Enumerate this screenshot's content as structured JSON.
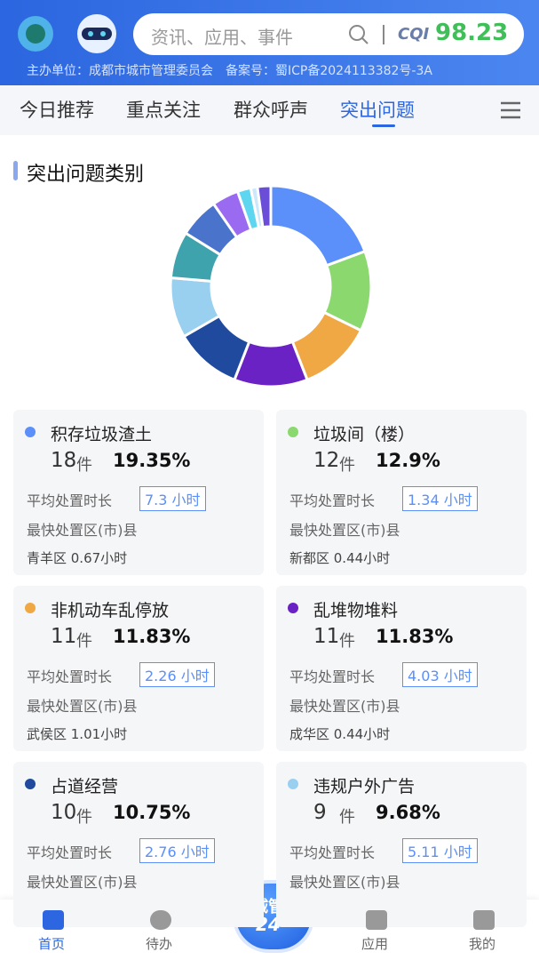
{
  "header": {
    "search_placeholder": "资讯、应用、事件",
    "cqi_label": "CQI",
    "cqi_value": "98.23",
    "info": "主办单位：成都市城市管理委员会　备案号：蜀ICP备2024113382号-3A"
  },
  "tabs": [
    "今日推荐",
    "重点关注",
    "群众呼声",
    "突出问题"
  ],
  "chart_data": {
    "type": "donut",
    "title": "突出问题类别",
    "categories": [
      "积存垃圾渣土",
      "垃圾间（楼）",
      "非机动车乱停放",
      "乱堆物堆料",
      "占道经营",
      "违规户外广告",
      null,
      null,
      null,
      null,
      null,
      null
    ],
    "values": [
      18,
      12,
      11,
      11,
      10,
      9,
      7,
      6,
      4,
      2,
      1,
      2
    ],
    "colors": [
      "#5b8ff9",
      "#8bd86f",
      "#f0a844",
      "#6a22c4",
      "#1f4a9e",
      "#9ad0ef",
      "#3fa3ae",
      "#4a74cc",
      "#9a6bf0",
      "#5fd6f0",
      "#cde8fa",
      "#6a4ed8"
    ]
  },
  "cards": [
    {
      "unit": "件",
      "percent": "19.35%",
      "avg_label": "平均处置时长",
      "avg": "7.3 小时",
      "fastest_label": "最快处置区(市)县",
      "fastest": "青羊区 0.67小时"
    },
    {
      "unit": "件",
      "percent": "12.9%",
      "avg_label": "平均处置时长",
      "avg": "1.34 小时",
      "fastest_label": "最快处置区(市)县",
      "fastest": "新都区 0.44小时"
    },
    {
      "unit": "件",
      "percent": "11.83%",
      "avg_label": "平均处置时长",
      "avg": "2.26 小时",
      "fastest_label": "最快处置区(市)县",
      "fastest": "武侯区 1.01小时"
    },
    {
      "unit": "件",
      "percent": "11.83%",
      "avg_label": "平均处置时长",
      "avg": "4.03 小时",
      "fastest_label": "最快处置区(市)县",
      "fastest": "成华区 0.44小时"
    },
    {
      "unit": "件",
      "percent": "10.75%",
      "avg_label": "平均处置时长",
      "avg": "2.76 小时",
      "fastest_label": "最快处置区(市)县"
    },
    {
      "unit": "件",
      "percent": "9.68%",
      "avg_label": "平均处置时长",
      "avg": "5.11 小时",
      "fastest_label": "最快处置区(市)县"
    }
  ],
  "nav": {
    "items": [
      "首页",
      "待办",
      "应用",
      "我的"
    ],
    "center": [
      "诚管",
      "24"
    ]
  }
}
